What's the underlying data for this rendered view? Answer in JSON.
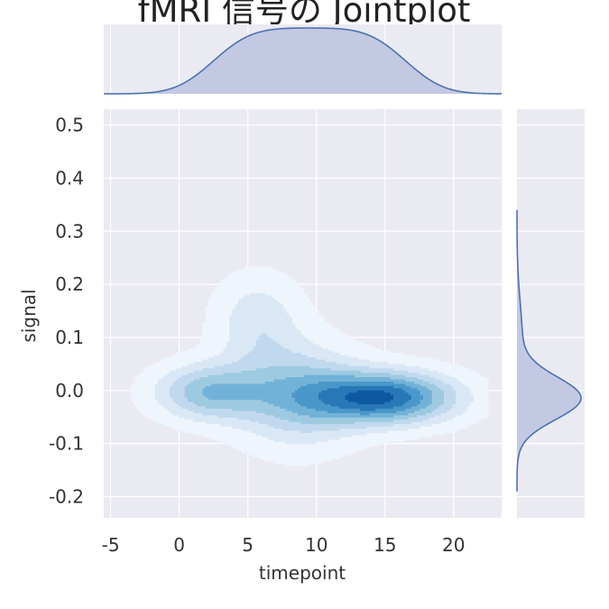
{
  "chart_data": {
    "type": "kde-jointplot",
    "title": "fMRI 信号の Jointplot",
    "xlabel": "timepoint",
    "ylabel": "signal",
    "xlim": [
      -5.5,
      23.5
    ],
    "ylim": [
      -0.24,
      0.53
    ],
    "xticks": [
      -5,
      0,
      5,
      10,
      15,
      20
    ],
    "yticks": [
      -0.2,
      -0.1,
      0.0,
      0.1,
      0.2,
      0.3,
      0.4,
      0.5
    ],
    "grid": true,
    "joint": {
      "cmap": "Blues",
      "levels": 8,
      "components": [
        {
          "cx": 2.0,
          "cy": -0.005,
          "sx": 2.7,
          "sy": 0.036,
          "w": 0.24
        },
        {
          "cx": 14.8,
          "cy": -0.015,
          "sx": 3.6,
          "sy": 0.034,
          "w": 0.42
        },
        {
          "cx": 8.5,
          "cy": -0.01,
          "sx": 3.2,
          "sy": 0.065,
          "w": 0.22
        },
        {
          "cx": 5.6,
          "cy": 0.13,
          "sx": 2.2,
          "sy": 0.06,
          "w": 0.12
        }
      ]
    },
    "marginal_x": {
      "plateau": [
        2.5,
        16.5
      ],
      "edge_sd": 2.2,
      "color": "#4c72b0"
    },
    "marginal_y": {
      "peak": -0.015,
      "sd": 0.04,
      "tail_mean": 0.1,
      "tail_sd": 0.07,
      "tail_weight": 0.08,
      "color": "#4c72b0"
    },
    "colors": {
      "panel_bg": "#eaeaf2",
      "grid": "#ffffff",
      "marginal_fill": "#c3c9e2",
      "marginal_line": "#4c72b0"
    }
  }
}
